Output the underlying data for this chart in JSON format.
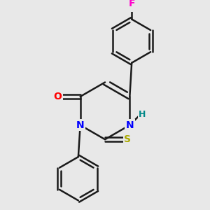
{
  "background_color": "#e8e8e8",
  "bond_color": "#1a1a1a",
  "bond_width": 1.8,
  "atom_colors": {
    "F": "#ff00cc",
    "N": "#0000ff",
    "O": "#ff0000",
    "S": "#aaaa00",
    "H": "#008888",
    "C": "#1a1a1a"
  },
  "font_size": 10
}
